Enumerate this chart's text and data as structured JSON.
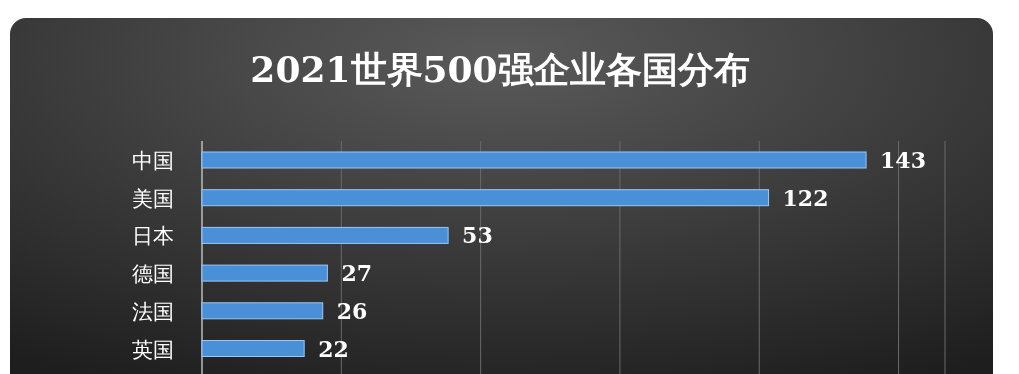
{
  "chart_data": {
    "type": "bar",
    "orientation": "horizontal",
    "title": "2021世界500强企业各国分布",
    "categories": [
      "中国",
      "美国",
      "日本",
      "德国",
      "法国",
      "英国"
    ],
    "values": [
      143,
      122,
      53,
      27,
      26,
      22
    ],
    "color": "#4a90d9",
    "xlim": [
      0,
      160
    ],
    "xticks": [
      {
        "value": 0,
        "label": null
      },
      {
        "value": 30,
        "label": null
      },
      {
        "value": 60,
        "label": null
      },
      {
        "value": 90,
        "label": null
      },
      {
        "value": 120,
        "label": null
      },
      {
        "value": 150,
        "label": null
      },
      {
        "value": 160,
        "label": null
      }
    ],
    "grid": "x",
    "data_labels": true,
    "tick_labels": "y"
  }
}
